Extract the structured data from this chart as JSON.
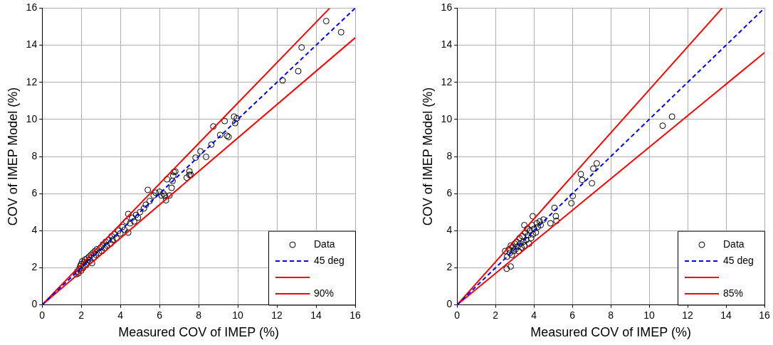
{
  "chart_data": [
    {
      "type": "scatter",
      "xlabel": "Measured COV of IMEP (%)",
      "ylabel": "COV of IMEP Model (%)",
      "xlim": [
        0,
        16
      ],
      "ylim": [
        0,
        16
      ],
      "xticks": [
        0,
        2,
        4,
        6,
        8,
        10,
        12,
        14,
        16
      ],
      "yticks": [
        0,
        2,
        4,
        6,
        8,
        10,
        12,
        14,
        16
      ],
      "grid": true,
      "legend": "bottom right",
      "series": [
        {
          "name": "Data",
          "type": "scatter",
          "marker": "circle",
          "color": "#000000",
          "x": [
            1.75,
            1.8,
            1.85,
            1.9,
            1.95,
            2.0,
            2.0,
            2.05,
            2.1,
            2.15,
            2.2,
            2.25,
            2.3,
            2.35,
            2.4,
            2.45,
            2.5,
            2.55,
            2.6,
            2.65,
            2.7,
            2.75,
            2.8,
            2.9,
            3.0,
            3.05,
            3.1,
            3.2,
            3.25,
            3.3,
            3.4,
            3.5,
            3.55,
            3.6,
            3.7,
            3.8,
            3.9,
            4.0,
            4.1,
            4.2,
            4.3,
            4.4,
            4.4,
            4.5,
            4.6,
            4.7,
            4.8,
            4.9,
            5.0,
            5.2,
            5.3,
            5.4,
            5.5,
            5.7,
            5.8,
            6.0,
            6.1,
            6.2,
            6.27,
            6.33,
            6.51,
            6.62,
            6.67,
            6.7,
            6.38,
            6.73,
            6.81,
            7.39,
            7.53,
            7.53,
            7.6,
            7.84,
            8.09,
            8.38,
            8.65,
            9.1,
            9.45,
            9.53,
            8.75,
            9.33,
            9.81,
            9.95,
            9.86,
            12.29,
            13.09,
            13.26,
            14.52,
            15.28
          ],
          "values": [
            1.65,
            1.8,
            1.7,
            1.95,
            2.1,
            1.85,
            2.2,
            2.35,
            2.0,
            2.3,
            2.45,
            2.15,
            2.5,
            2.3,
            2.6,
            2.4,
            2.7,
            2.25,
            2.8,
            2.55,
            2.9,
            2.7,
            3.0,
            2.8,
            3.1,
            2.9,
            3.25,
            3.05,
            3.4,
            3.2,
            3.5,
            3.3,
            3.7,
            3.5,
            3.8,
            3.6,
            4.0,
            3.85,
            4.2,
            4.05,
            4.5,
            4.9,
            3.9,
            4.4,
            4.7,
            4.5,
            4.85,
            4.7,
            5.0,
            5.2,
            5.4,
            6.2,
            5.6,
            5.9,
            6.05,
            6.1,
            5.9,
            6.0,
            5.89,
            5.64,
            5.9,
            6.31,
            6.68,
            6.97,
            6.77,
            7.16,
            7.19,
            6.86,
            7.2,
            7.01,
            7.01,
            7.94,
            8.28,
            7.98,
            8.64,
            9.16,
            9.12,
            9.05,
            9.62,
            9.91,
            10.15,
            10.06,
            9.8,
            12.1,
            12.6,
            13.88,
            15.3,
            14.7
          ]
        },
        {
          "name": "45 deg",
          "type": "line",
          "line_style": "dashed",
          "color": "#0000ff",
          "x": [
            0,
            16
          ],
          "values": [
            0,
            16
          ]
        },
        {
          "name": null,
          "type": "line",
          "line_style": "solid",
          "color": "#ff0000",
          "x": [
            0,
            14.7
          ],
          "values": [
            0,
            16
          ]
        },
        {
          "name": "90%",
          "type": "line",
          "line_style": "solid",
          "color": "#ff0000",
          "x": [
            0,
            16
          ],
          "values": [
            0,
            14.4
          ]
        }
      ]
    },
    {
      "type": "scatter",
      "xlabel": "Measured COV of IMEP (%)",
      "ylabel": "COV of IMEP Model (%)",
      "xlim": [
        0,
        16
      ],
      "ylim": [
        0,
        16
      ],
      "xticks": [
        0,
        2,
        4,
        6,
        8,
        10,
        12,
        14,
        16
      ],
      "yticks": [
        0,
        2,
        4,
        6,
        8,
        10,
        12,
        14,
        16
      ],
      "grid": true,
      "legend": "bottom right",
      "series": [
        {
          "name": "Data",
          "type": "scatter",
          "marker": "circle",
          "color": "#000000",
          "x": [
            2.5,
            2.6,
            2.7,
            2.75,
            2.8,
            2.85,
            2.9,
            2.95,
            3.0,
            3.05,
            3.1,
            3.15,
            3.2,
            3.25,
            3.3,
            3.35,
            3.4,
            3.45,
            3.5,
            3.5,
            3.55,
            3.6,
            3.65,
            3.7,
            3.75,
            3.8,
            3.85,
            3.9,
            3.95,
            4.0,
            4.1,
            4.15,
            4.2,
            4.3,
            4.35,
            4.5,
            2.58,
            2.79,
            3.94,
            4.86,
            5.17,
            5.14,
            5.07,
            5.95,
            6.02,
            7.02,
            6.51,
            6.44,
            7.09,
            7.27,
            10.7,
            11.19
          ],
          "values": [
            2.9,
            2.6,
            3.0,
            2.8,
            3.2,
            2.7,
            3.1,
            2.9,
            3.3,
            3.0,
            3.4,
            3.15,
            2.9,
            3.6,
            3.3,
            3.1,
            3.7,
            3.4,
            4.3,
            3.2,
            3.9,
            3.5,
            4.1,
            3.75,
            3.3,
            4.0,
            3.6,
            4.3,
            3.8,
            4.1,
            3.9,
            4.4,
            4.2,
            4.5,
            4.3,
            4.6,
            1.95,
            2.07,
            4.78,
            4.4,
            4.53,
            4.78,
            5.23,
            5.48,
            5.87,
            6.56,
            6.74,
            7.05,
            7.35,
            7.63,
            9.66,
            10.15
          ]
        },
        {
          "name": "45 deg",
          "type": "line",
          "line_style": "dashed",
          "color": "#0000ff",
          "x": [
            0,
            16
          ],
          "values": [
            0,
            16
          ]
        },
        {
          "name": null,
          "type": "line",
          "line_style": "solid",
          "color": "#ff0000",
          "x": [
            0,
            13.8
          ],
          "values": [
            0,
            16
          ]
        },
        {
          "name": "85%",
          "type": "line",
          "line_style": "solid",
          "color": "#ff0000",
          "x": [
            0,
            16
          ],
          "values": [
            0,
            13.6
          ]
        }
      ]
    }
  ]
}
